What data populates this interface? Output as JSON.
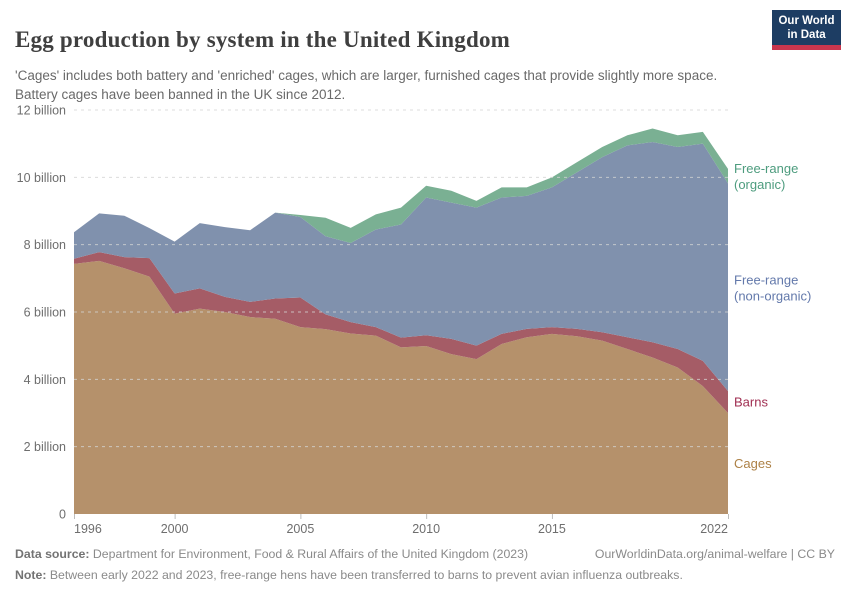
{
  "header": {
    "title": "Egg production by system in the United Kingdom",
    "subtitle": "'Cages' includes both battery and 'enriched' cages, which are larger, furnished cages that provide slightly more space. Battery cages have been banned in the UK since 2012.",
    "logo": {
      "line1": "Our World",
      "line2": "in Data",
      "bg_color": "#1d3d63",
      "bar_color": "#c9364e"
    }
  },
  "chart_data": {
    "type": "area",
    "stacked": true,
    "x": [
      1996,
      1997,
      1998,
      1999,
      2000,
      2001,
      2002,
      2003,
      2004,
      2005,
      2006,
      2007,
      2008,
      2009,
      2010,
      2011,
      2012,
      2013,
      2014,
      2015,
      2016,
      2017,
      2018,
      2019,
      2020,
      2021,
      2022
    ],
    "series": [
      {
        "name": "Cages",
        "color": "#b5916b",
        "label_color": "#ad8146",
        "values": [
          7.43,
          7.52,
          7.3,
          7.05,
          5.95,
          6.1,
          6.0,
          5.85,
          5.8,
          5.55,
          5.49,
          5.36,
          5.3,
          4.95,
          4.99,
          4.75,
          4.6,
          5.05,
          5.25,
          5.35,
          5.28,
          5.15,
          4.9,
          4.65,
          4.35,
          3.8,
          3.0
        ]
      },
      {
        "name": "Barns",
        "color": "#a55c66",
        "label_color": "#a02f52",
        "values": [
          0.15,
          0.26,
          0.33,
          0.55,
          0.6,
          0.6,
          0.45,
          0.45,
          0.6,
          0.88,
          0.44,
          0.34,
          0.25,
          0.29,
          0.32,
          0.45,
          0.4,
          0.3,
          0.25,
          0.2,
          0.22,
          0.25,
          0.35,
          0.45,
          0.55,
          0.75,
          0.65
        ]
      },
      {
        "name": "Free-range (non-organic)",
        "color": "#8091ad",
        "label_color": "#6379ab",
        "values": [
          0.79,
          1.15,
          1.23,
          0.89,
          1.54,
          1.94,
          2.07,
          2.13,
          2.55,
          2.39,
          2.32,
          2.35,
          2.9,
          3.36,
          4.09,
          4.05,
          4.1,
          4.05,
          3.95,
          4.15,
          4.65,
          5.2,
          5.7,
          5.95,
          6.0,
          6.45,
          6.17
        ]
      },
      {
        "name": "Free-range (organic)",
        "color": "#7ab093",
        "label_color": "#4d9c7e",
        "values": [
          0,
          0,
          0,
          0,
          0,
          0,
          0,
          0,
          0,
          0.06,
          0.55,
          0.45,
          0.45,
          0.5,
          0.35,
          0.35,
          0.2,
          0.3,
          0.25,
          0.3,
          0.3,
          0.3,
          0.3,
          0.4,
          0.35,
          0.35,
          0.43
        ]
      }
    ],
    "title": "Egg production by system in the United Kingdom",
    "xlabel": "",
    "ylabel": "",
    "ylim": [
      0,
      12
    ],
    "yticks": [
      0,
      2,
      4,
      6,
      8,
      10,
      12
    ],
    "ytick_labels": [
      "0",
      "2 billion",
      "4 billion",
      "6 billion",
      "8 billion",
      "10 billion",
      "12 billion"
    ],
    "xticks": [
      1996,
      2000,
      2005,
      2010,
      2015,
      2022
    ],
    "grid": "dashed-horizontal",
    "legend_position": "right-of-plot-inline-labels"
  },
  "footer": {
    "datasource_label": "Data source:",
    "datasource_text": " Department for Environment, Food & Rural Affairs of the United Kingdom (2023)",
    "attribution": "OurWorldinData.org/animal-welfare | CC BY",
    "note_label": "Note:",
    "note_text": " Between early 2022 and 2023, free-range hens have been transferred to barns to prevent avian influenza outbreaks."
  }
}
